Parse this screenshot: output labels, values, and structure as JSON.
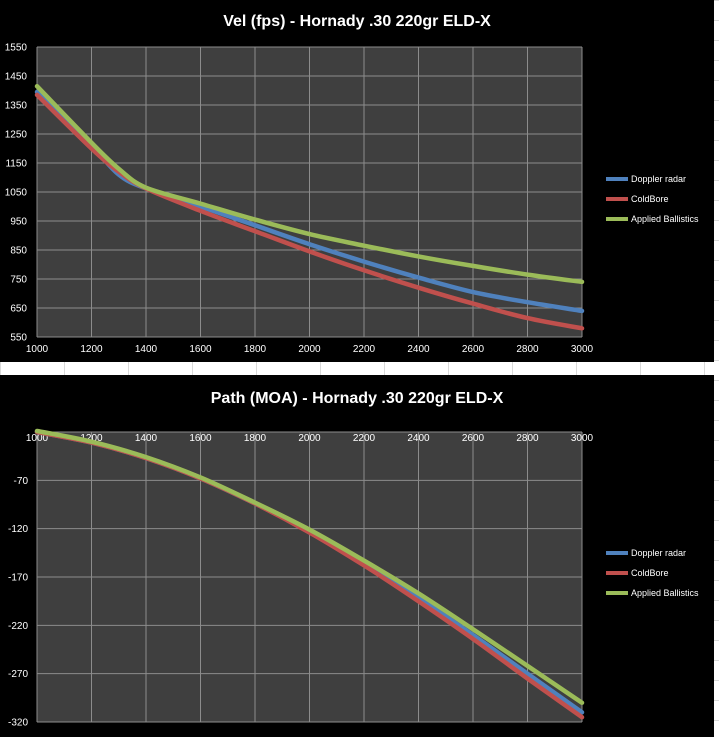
{
  "chart_data": [
    {
      "type": "line",
      "title": "Vel (fps) - Hornady .30 220gr ELD-X",
      "xlabel": "",
      "ylabel": "",
      "xlim": [
        1000,
        3000
      ],
      "ylim": [
        550,
        1550
      ],
      "x_ticks": [
        "1000",
        "1200",
        "1400",
        "1600",
        "1800",
        "2000",
        "2200",
        "2400",
        "2600",
        "2800",
        "3000"
      ],
      "y_ticks": [
        "550",
        "650",
        "750",
        "850",
        "950",
        "1050",
        "1150",
        "1250",
        "1350",
        "1450",
        "1550"
      ],
      "grid": true,
      "legend_position": "right",
      "x": [
        1000,
        1200,
        1300,
        1400,
        1600,
        1800,
        2000,
        2200,
        2400,
        2600,
        2800,
        3000
      ],
      "series": [
        {
          "name": "Doppler radar",
          "color": "#4f81bd",
          "values": [
            1395,
            1210,
            1110,
            1062,
            1000,
            935,
            870,
            810,
            755,
            705,
            670,
            640
          ]
        },
        {
          "name": "ColdBore",
          "color": "#c0504d",
          "values": [
            1385,
            1200,
            1120,
            1062,
            985,
            915,
            845,
            780,
            720,
            665,
            615,
            580
          ]
        },
        {
          "name": "Applied Ballistics",
          "color": "#9bbb59",
          "values": [
            1415,
            1220,
            1130,
            1065,
            1010,
            955,
            905,
            865,
            828,
            795,
            765,
            740
          ]
        }
      ]
    },
    {
      "type": "line",
      "title": "Path (MOA) - Hornady .30 220gr ELD-X",
      "xlabel": "",
      "ylabel": "",
      "xlim": [
        1000,
        3000
      ],
      "ylim": [
        -320,
        -20
      ],
      "x_ticks": [
        "1000",
        "1200",
        "1400",
        "1600",
        "1800",
        "2000",
        "2200",
        "2400",
        "2600",
        "2800",
        "3000"
      ],
      "y_ticks": [
        "-70",
        "-120",
        "-170",
        "-220",
        "-270",
        "-320"
      ],
      "grid": true,
      "legend_position": "right",
      "x": [
        1000,
        1200,
        1400,
        1600,
        1800,
        2000,
        2200,
        2400,
        2600,
        2800,
        3000
      ],
      "series": [
        {
          "name": "Doppler radar",
          "color": "#4f81bd",
          "values": [
            -20,
            -31,
            -47,
            -68,
            -94,
            -123,
            -156,
            -192,
            -230,
            -270,
            -310
          ]
        },
        {
          "name": "ColdBore",
          "color": "#c0504d",
          "values": [
            -20,
            -31,
            -47,
            -68,
            -94,
            -124,
            -158,
            -195,
            -234,
            -275,
            -315
          ]
        },
        {
          "name": "Applied Ballistics",
          "color": "#9bbb59",
          "values": [
            -19,
            -30,
            -46,
            -67,
            -93,
            -121,
            -153,
            -187,
            -224,
            -262,
            -300
          ]
        }
      ]
    }
  ]
}
